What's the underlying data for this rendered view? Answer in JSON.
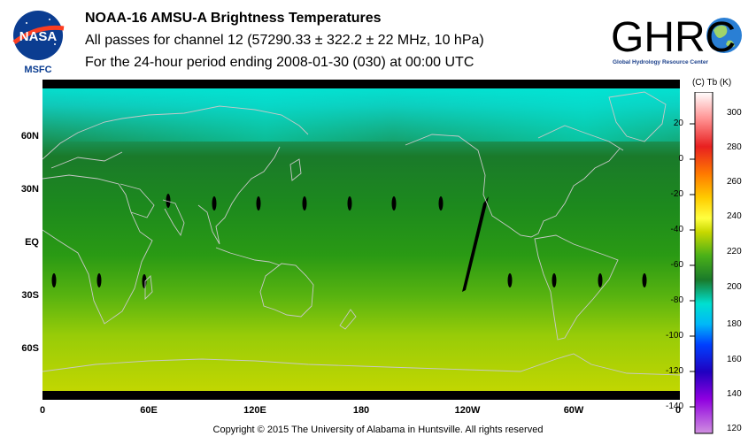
{
  "header": {
    "title": "NOAA-16 AMSU-A Brightness Temperatures",
    "subtitle": "All passes for channel 12 (57290.33 ± 322.2 ± 22 MHz, 10 hPa)",
    "period": "For the 24-hour period ending 2008-01-30 (030) at 00:00 UTC"
  },
  "logos": {
    "nasa": "NASA",
    "msfc": "MSFC",
    "ghrc": "GHRC",
    "ghrc_sub": "Global Hydrology Resource Center"
  },
  "map": {
    "lat_labels": [
      "60N",
      "30N",
      "EQ",
      "30S",
      "60S"
    ],
    "lon_labels": [
      "0",
      "60E",
      "120E",
      "180",
      "120W",
      "60W",
      "0"
    ],
    "colors": {
      "high_lat_north": "#00e0d0",
      "mid": "#1e8a1e",
      "south": "#c8d800",
      "missing": "#000000",
      "coast": "#c8c8c8"
    }
  },
  "colorbar": {
    "units": "(C)  Tb  (K)",
    "celsius_labels": [
      "20",
      "0",
      "-20",
      "-40",
      "-60",
      "-80",
      "-100",
      "-120",
      "-140"
    ],
    "kelvin_labels": [
      "300",
      "280",
      "260",
      "240",
      "220",
      "200",
      "180",
      "160",
      "140",
      "120"
    ]
  },
  "footer": {
    "copyright": "Copyright © 2015 The University of Alabama in Huntsville.  All rights reserved"
  }
}
